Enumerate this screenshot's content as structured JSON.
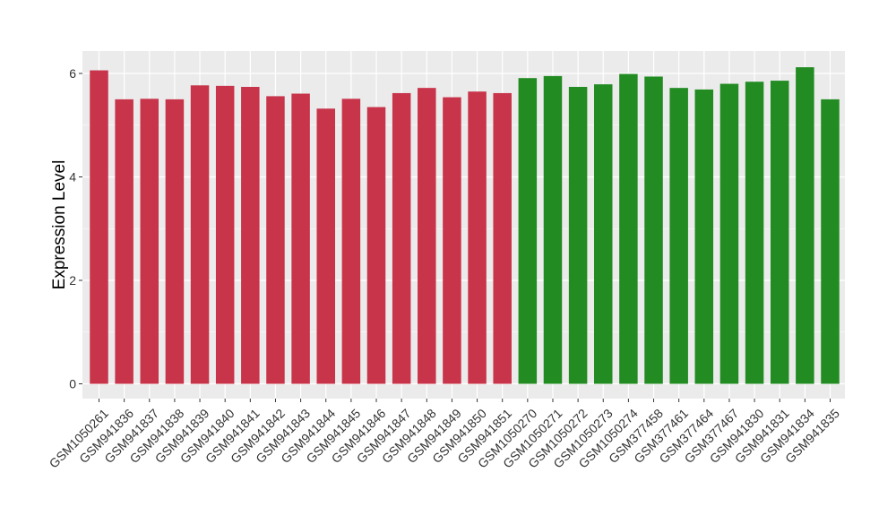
{
  "chart_data": {
    "type": "bar",
    "ylabel": "Expression Level",
    "xlabel": "",
    "ylim": [
      0,
      6.3
    ],
    "yticks": [
      0,
      2,
      4,
      6
    ],
    "grid": true,
    "legend": "none",
    "colors": {
      "group1": "#c8344a",
      "group2": "#228b22",
      "panel": "#ebebeb",
      "grid": "#ffffff"
    },
    "categories": [
      "GSM1050261",
      "GSM941836",
      "GSM941837",
      "GSM941838",
      "GSM941839",
      "GSM941840",
      "GSM941841",
      "GSM941842",
      "GSM941843",
      "GSM941844",
      "GSM941845",
      "GSM941846",
      "GSM941847",
      "GSM941848",
      "GSM941849",
      "GSM941850",
      "GSM941851",
      "GSM1050270",
      "GSM1050271",
      "GSM1050272",
      "GSM1050273",
      "GSM1050274",
      "GSM377458",
      "GSM377461",
      "GSM377464",
      "GSM377467",
      "GSM941830",
      "GSM941831",
      "GSM941834",
      "GSM941835"
    ],
    "values": [
      6.06,
      5.5,
      5.51,
      5.5,
      5.77,
      5.76,
      5.74,
      5.56,
      5.61,
      5.32,
      5.51,
      5.35,
      5.62,
      5.72,
      5.54,
      5.65,
      5.62,
      5.91,
      5.95,
      5.74,
      5.79,
      5.99,
      5.94,
      5.72,
      5.69,
      5.8,
      5.84,
      5.86,
      6.12,
      5.5
    ],
    "groups": [
      1,
      1,
      1,
      1,
      1,
      1,
      1,
      1,
      1,
      1,
      1,
      1,
      1,
      1,
      1,
      1,
      1,
      2,
      2,
      2,
      2,
      2,
      2,
      2,
      2,
      2,
      2,
      2,
      2,
      2
    ]
  }
}
